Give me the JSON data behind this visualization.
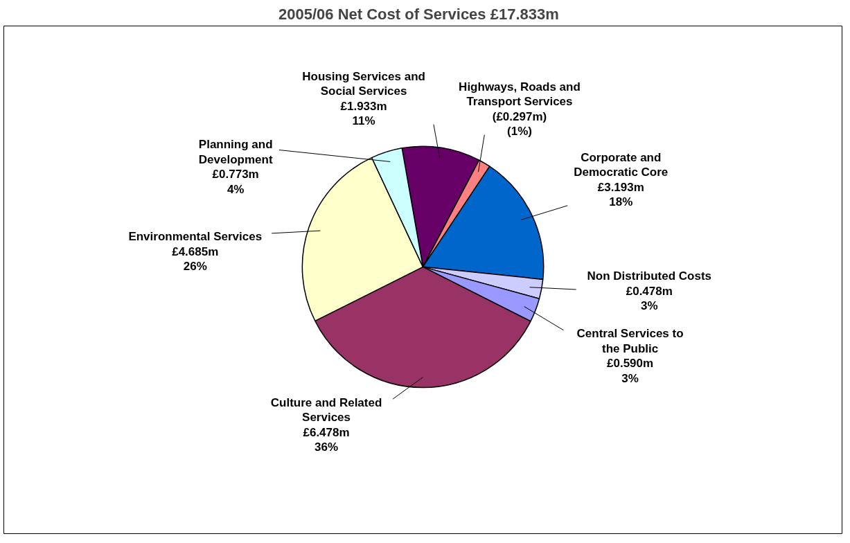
{
  "chart_data": {
    "type": "pie",
    "title": "2005/06  Net Cost of Services  £17.833m",
    "categories": [
      "Housing Services and Social Services",
      "Highways, Roads and Transport Services",
      "Corporate and Democratic Core",
      "Non Distributed Costs",
      "Central Services to the Public",
      "Culture and Related Services",
      "Environmental Services",
      "Planning and Development"
    ],
    "values": [
      1.933,
      0.297,
      3.193,
      0.478,
      0.59,
      6.478,
      4.685,
      0.773
    ],
    "value_labels": [
      "£1.933m",
      "(£0.297m)",
      "£3.193m",
      "£0.478m",
      "£0.590m",
      "£6.478m",
      "£4.685m",
      "£0.773m"
    ],
    "annotations": [
      "11%",
      "(1%)",
      "18%",
      "3%",
      "3%",
      "36%",
      "26%",
      "4%"
    ],
    "colors": [
      "#660066",
      "#ff8080",
      "#0066cc",
      "#ccccff",
      "#9999ff",
      "#993366",
      "#ffffcc",
      "#ccffff"
    ],
    "legend": false
  }
}
